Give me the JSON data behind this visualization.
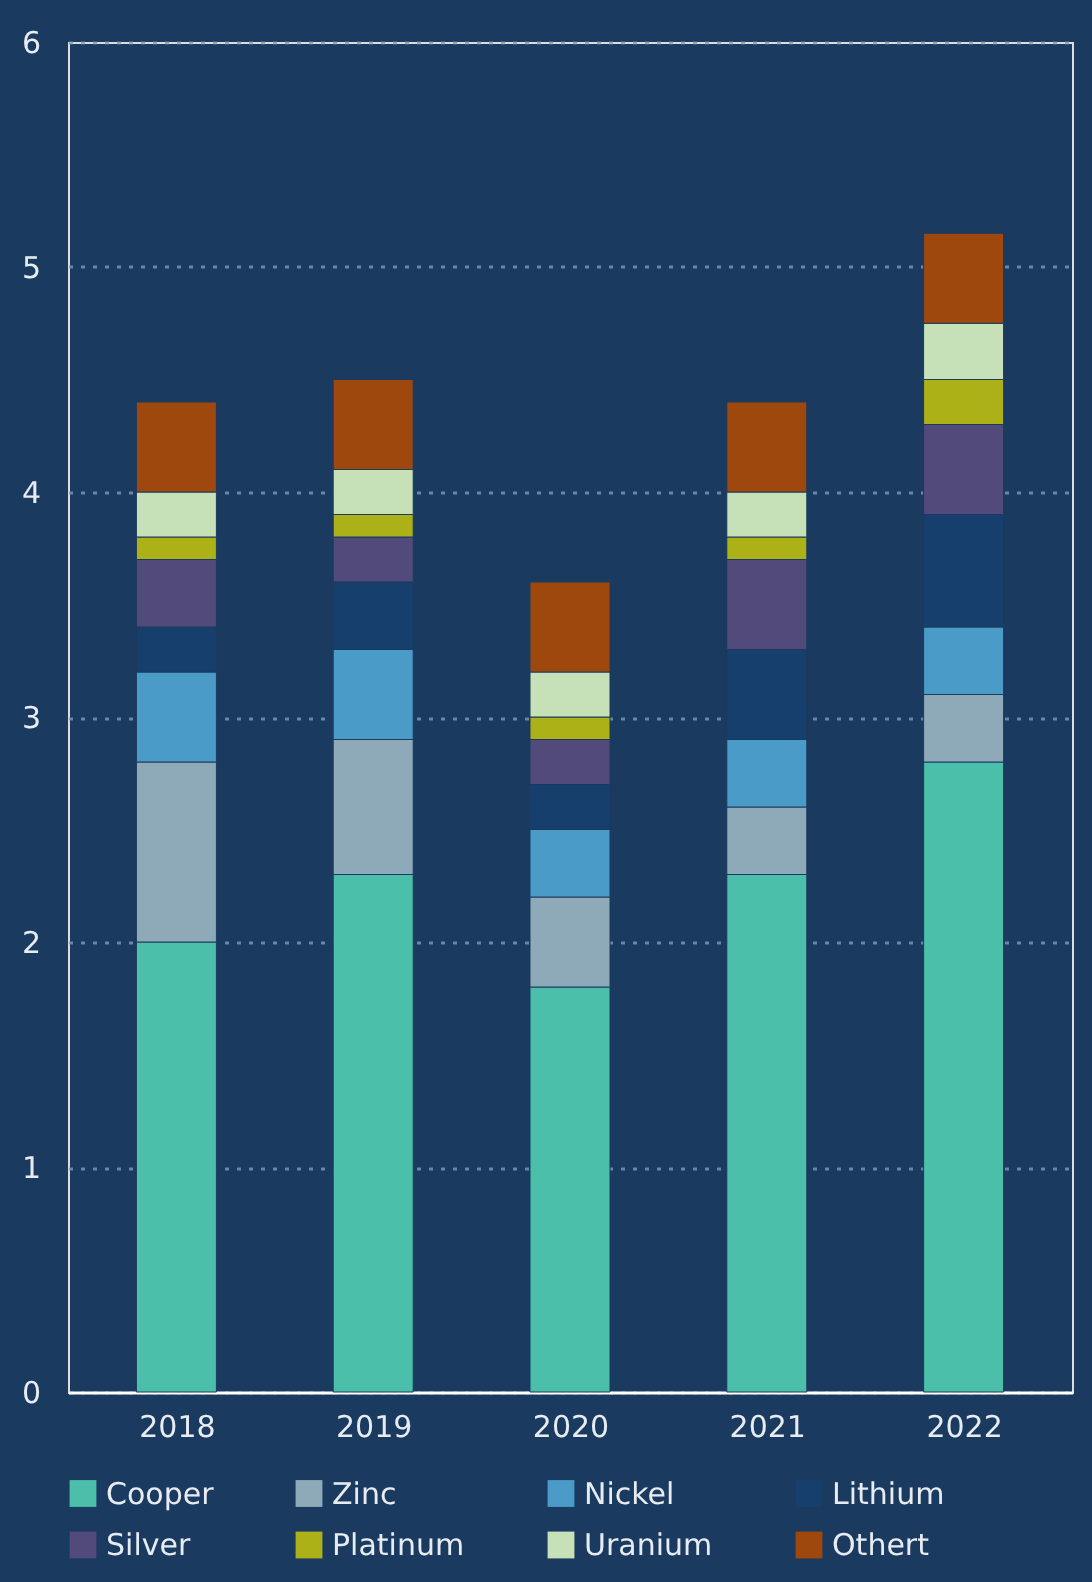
{
  "chart_data": {
    "type": "bar",
    "stacked": true,
    "categories": [
      "2018",
      "2019",
      "2020",
      "2021",
      "2022"
    ],
    "series": [
      {
        "name": "Cooper",
        "color": "#4bbfa9",
        "values": [
          2.0,
          2.3,
          1.8,
          2.3,
          2.8
        ]
      },
      {
        "name": "Zinc",
        "color": "#8eaab8",
        "values": [
          0.8,
          0.6,
          0.4,
          0.3,
          0.3
        ]
      },
      {
        "name": "Nickel",
        "color": "#4b9bc8",
        "values": [
          0.4,
          0.4,
          0.3,
          0.3,
          0.3
        ]
      },
      {
        "name": "Lithium",
        "color": "#173f6e",
        "values": [
          0.2,
          0.3,
          0.2,
          0.4,
          0.5
        ]
      },
      {
        "name": "Silver",
        "color": "#514a7a",
        "values": [
          0.3,
          0.2,
          0.2,
          0.4,
          0.4
        ]
      },
      {
        "name": "Platinum",
        "color": "#adb118",
        "values": [
          0.1,
          0.1,
          0.1,
          0.1,
          0.2
        ]
      },
      {
        "name": "Uranium",
        "color": "#c6e0b7",
        "values": [
          0.2,
          0.2,
          0.2,
          0.2,
          0.25
        ]
      },
      {
        "name": "Othert",
        "color": "#9e480e",
        "values": [
          0.4,
          0.4,
          0.4,
          0.4,
          0.4
        ]
      }
    ],
    "ylim": [
      0,
      6
    ],
    "yticks": [
      0,
      1,
      2,
      3,
      4,
      5,
      6
    ],
    "grid": "y",
    "legend": "bottom"
  }
}
